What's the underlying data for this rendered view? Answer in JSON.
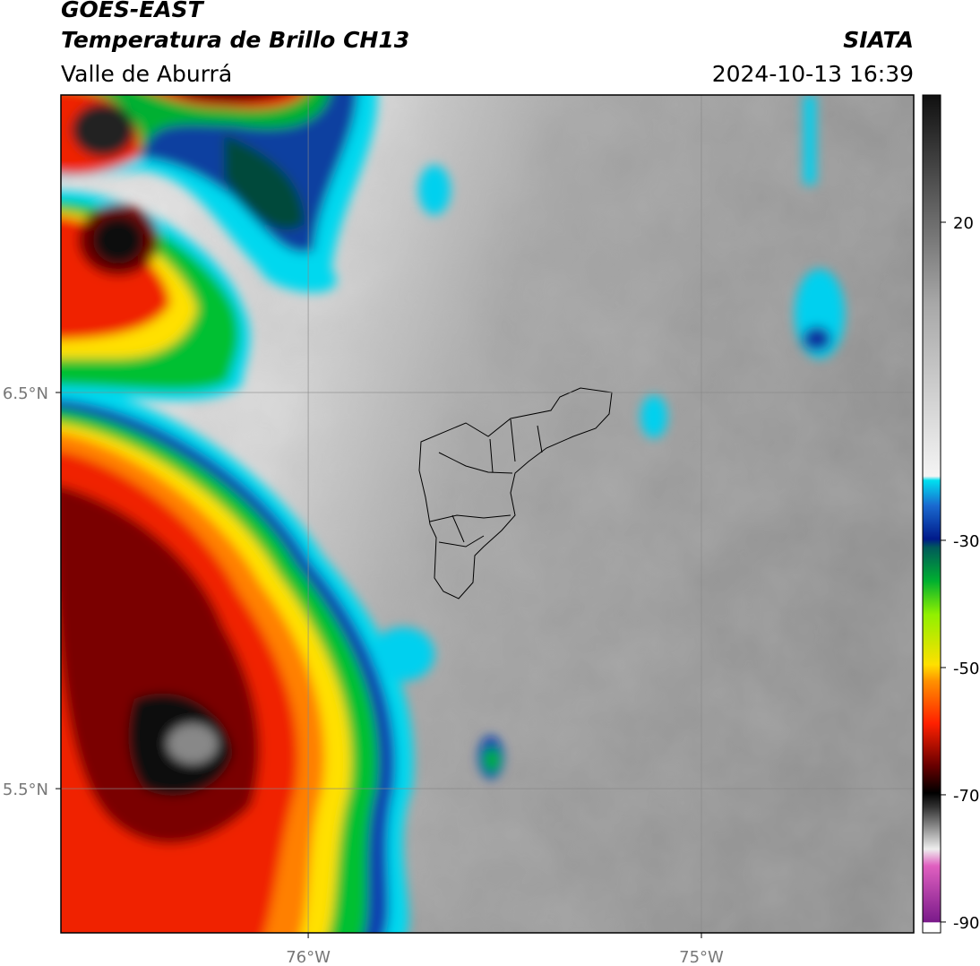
{
  "header": {
    "satellite": "GOES-EAST",
    "product": "Temperatura de Brillo CH13",
    "region": "Valle de Aburrá",
    "agency": "SIATA",
    "datetime": "2024-10-13 16:39"
  },
  "map": {
    "xlim": [
      -76.629,
      -74.46
    ],
    "ylim": [
      5.136,
      7.251
    ],
    "xticks": [
      {
        "value": -76,
        "label": "76°W"
      },
      {
        "value": -75,
        "label": "75°W"
      }
    ],
    "yticks": [
      {
        "value": 6.5,
        "label": "6.5°N"
      },
      {
        "value": 5.5,
        "label": "5.5°N"
      }
    ]
  },
  "colorbar": {
    "lim": [
      -91.7,
      40
    ],
    "ticks": [
      20,
      -30,
      -50,
      -70,
      -90
    ]
  }
}
